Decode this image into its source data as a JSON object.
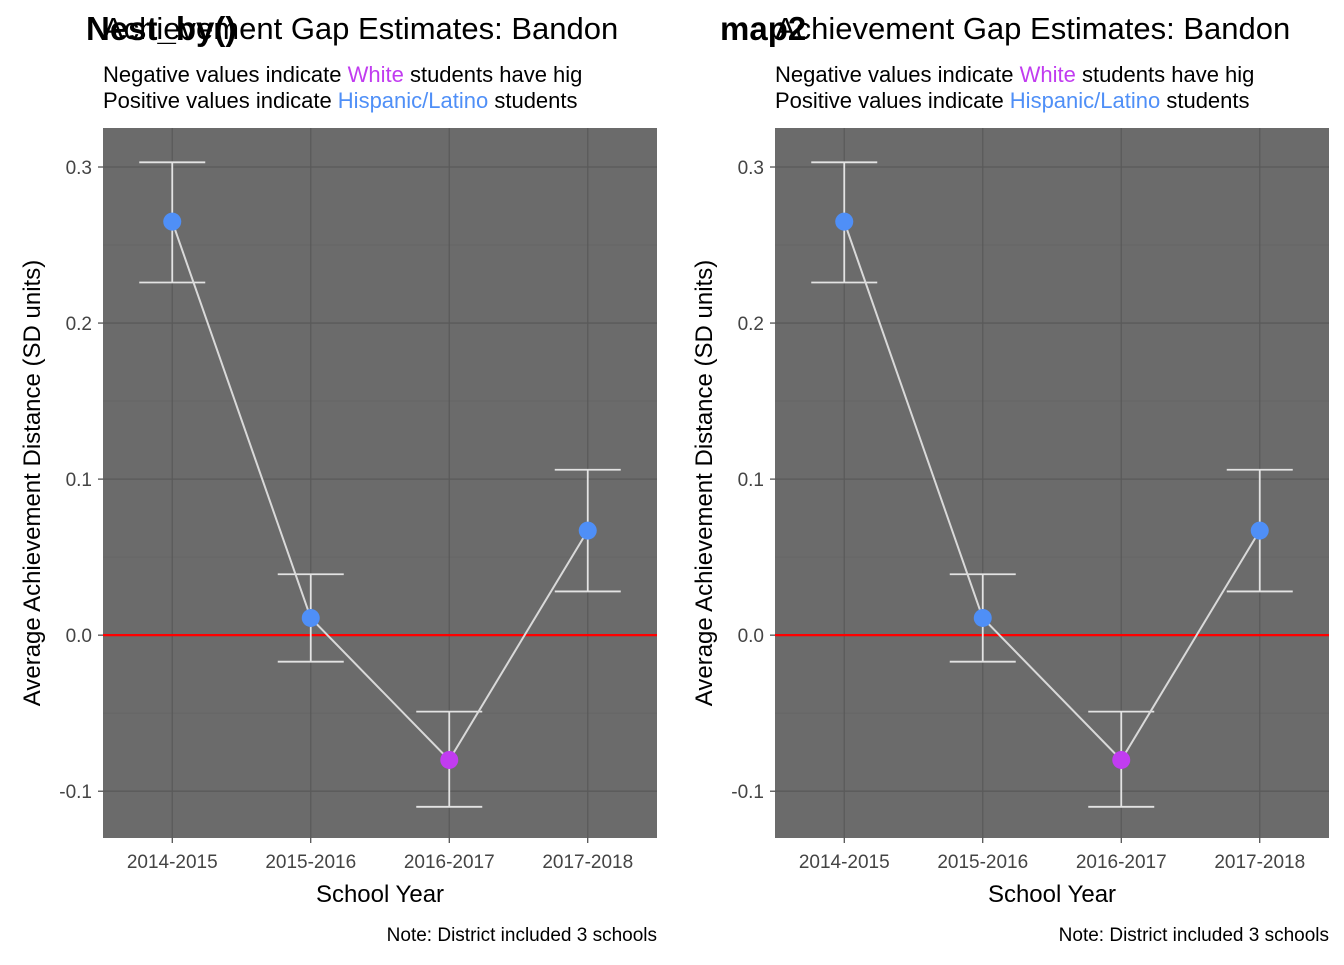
{
  "panels": [
    {
      "tag": "Nest_by()",
      "title": "Achievement Gap Estimates: Bandon",
      "subtitle_line1": {
        "pre": "Negative values indicate ",
        "group": "White",
        "post": " students have hig"
      },
      "subtitle_line2": {
        "pre": "Positive values indicate ",
        "group": "Hispanic/Latino",
        "post": " students"
      },
      "caption": "Note: District included 3 schools",
      "chart_data": {
        "type": "scatter",
        "xlabel": "School Year",
        "ylabel": "Average Achievement Distance (SD units)",
        "categories": [
          "2014-2015",
          "2015-2016",
          "2016-2017",
          "2017-2018"
        ],
        "values": [
          0.265,
          0.011,
          -0.08,
          0.067
        ],
        "lower": [
          0.226,
          -0.017,
          -0.11,
          0.028
        ],
        "upper": [
          0.303,
          0.039,
          -0.049,
          0.106
        ],
        "point_group": [
          "Hispanic/Latino",
          "Hispanic/Latino",
          "White",
          "Hispanic/Latino"
        ],
        "ylim": [
          -0.13,
          0.325
        ],
        "yticks": [
          -0.1,
          0.0,
          0.1,
          0.2,
          0.3
        ],
        "ytick_labels": [
          "-0.1",
          "0.0",
          "0.1",
          "0.2",
          "0.3"
        ],
        "reference_line": 0,
        "grid": true,
        "connected_line": true,
        "error_bars": true
      }
    },
    {
      "tag": "map2",
      "title": "Achievement Gap Estimates: Bandon",
      "subtitle_line1": {
        "pre": "Negative values indicate ",
        "group": "White",
        "post": " students have hig"
      },
      "subtitle_line2": {
        "pre": "Positive values indicate ",
        "group": "Hispanic/Latino",
        "post": " students"
      },
      "caption": "Note: District included 3 schools",
      "chart_data": {
        "type": "scatter",
        "xlabel": "School Year",
        "ylabel": "Average Achievement Distance (SD units)",
        "categories": [
          "2014-2015",
          "2015-2016",
          "2016-2017",
          "2017-2018"
        ],
        "values": [
          0.265,
          0.011,
          -0.08,
          0.067
        ],
        "lower": [
          0.226,
          -0.017,
          -0.11,
          0.028
        ],
        "upper": [
          0.303,
          0.039,
          -0.049,
          0.106
        ],
        "point_group": [
          "Hispanic/Latino",
          "Hispanic/Latino",
          "White",
          "Hispanic/Latino"
        ],
        "ylim": [
          -0.13,
          0.325
        ],
        "yticks": [
          -0.1,
          0.0,
          0.1,
          0.2,
          0.3
        ],
        "ytick_labels": [
          "-0.1",
          "0.0",
          "0.1",
          "0.2",
          "0.3"
        ],
        "reference_line": 0,
        "grid": true,
        "connected_line": true,
        "error_bars": true
      }
    }
  ],
  "colors": {
    "panel_bg": "#6b6b6b",
    "grid_major": "#5a5a5a",
    "grid_minor": "#656565",
    "line": "#d9d9d9",
    "errorbar": "#e3e3e3",
    "reference": "#ff0000",
    "White": "#c13cf0",
    "Hispanic/Latino": "#4f8ff7",
    "text": "#000000",
    "tick_text": "#444444"
  }
}
